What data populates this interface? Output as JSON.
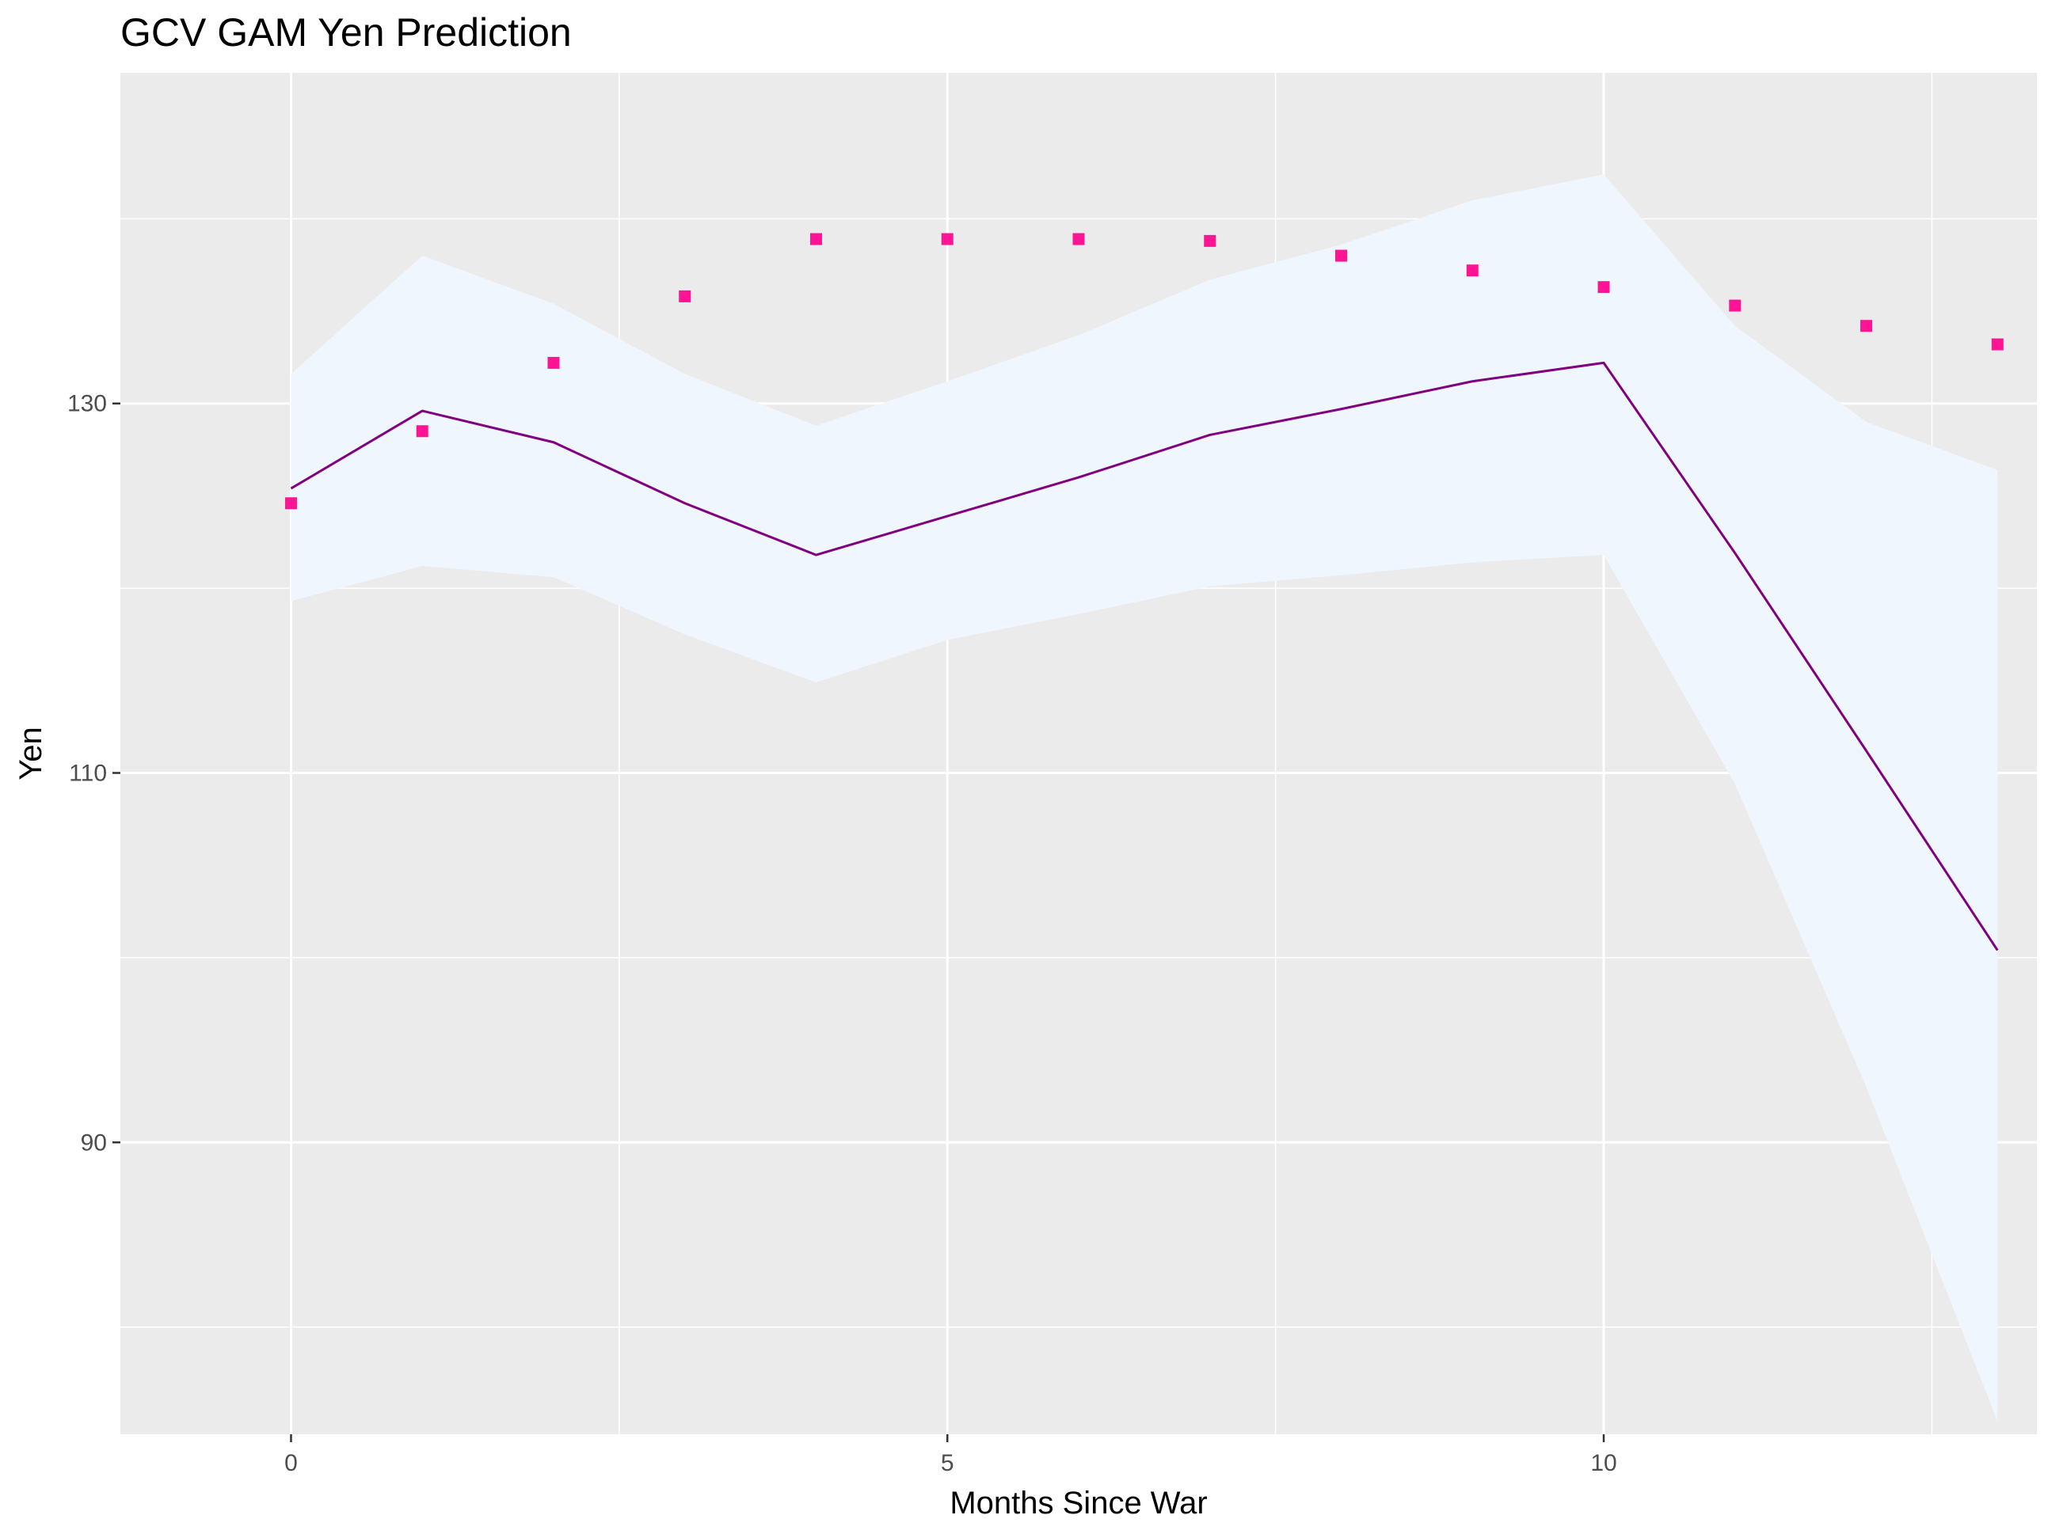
{
  "chart_data": {
    "type": "line",
    "title": "GCV GAM Yen Prediction",
    "xlabel": "Months Since War",
    "ylabel": "Yen",
    "xlim": [
      -1.3,
      13.3
    ],
    "ylim": [
      74.2,
      147.9
    ],
    "x_ticks": [
      0,
      5,
      10
    ],
    "y_ticks": [
      90,
      110,
      130
    ],
    "x_minor_ticks": [
      2.5,
      7.5,
      12.5
    ],
    "y_minor_ticks": [
      80,
      100,
      120,
      140
    ],
    "x_tick_labels": [
      "0",
      "5",
      "10"
    ],
    "y_tick_labels": [
      "90",
      "110",
      "130"
    ],
    "grid": true,
    "legend": "none",
    "x": [
      0,
      1,
      2,
      3,
      4,
      5,
      6,
      7,
      8,
      9,
      10,
      11,
      12,
      13
    ],
    "observed": [
      124.6,
      128.5,
      132.2,
      135.8,
      138.9,
      138.9,
      138.9,
      138.8,
      138.0,
      137.2,
      136.3,
      135.3,
      134.2,
      133.2
    ],
    "fit": [
      125.4,
      129.6,
      127.9,
      124.6,
      121.8,
      123.9,
      126.0,
      128.3,
      129.7,
      131.2,
      132.2,
      121.9,
      111.2,
      100.4
    ],
    "lower": [
      119.3,
      121.2,
      120.6,
      117.5,
      114.9,
      117.2,
      118.6,
      120.1,
      120.7,
      121.4,
      121.8,
      109.4,
      93.0,
      74.9
    ],
    "upper": [
      131.6,
      138.0,
      135.4,
      131.6,
      128.8,
      131.2,
      133.7,
      136.7,
      138.6,
      141.0,
      142.4,
      134.2,
      129.0,
      126.4
    ],
    "colors": {
      "panel": "#ebebeb",
      "grid": "#ffffff",
      "ribbon": "#eff6fd",
      "line": "#800080",
      "points": "#ff1493"
    }
  }
}
